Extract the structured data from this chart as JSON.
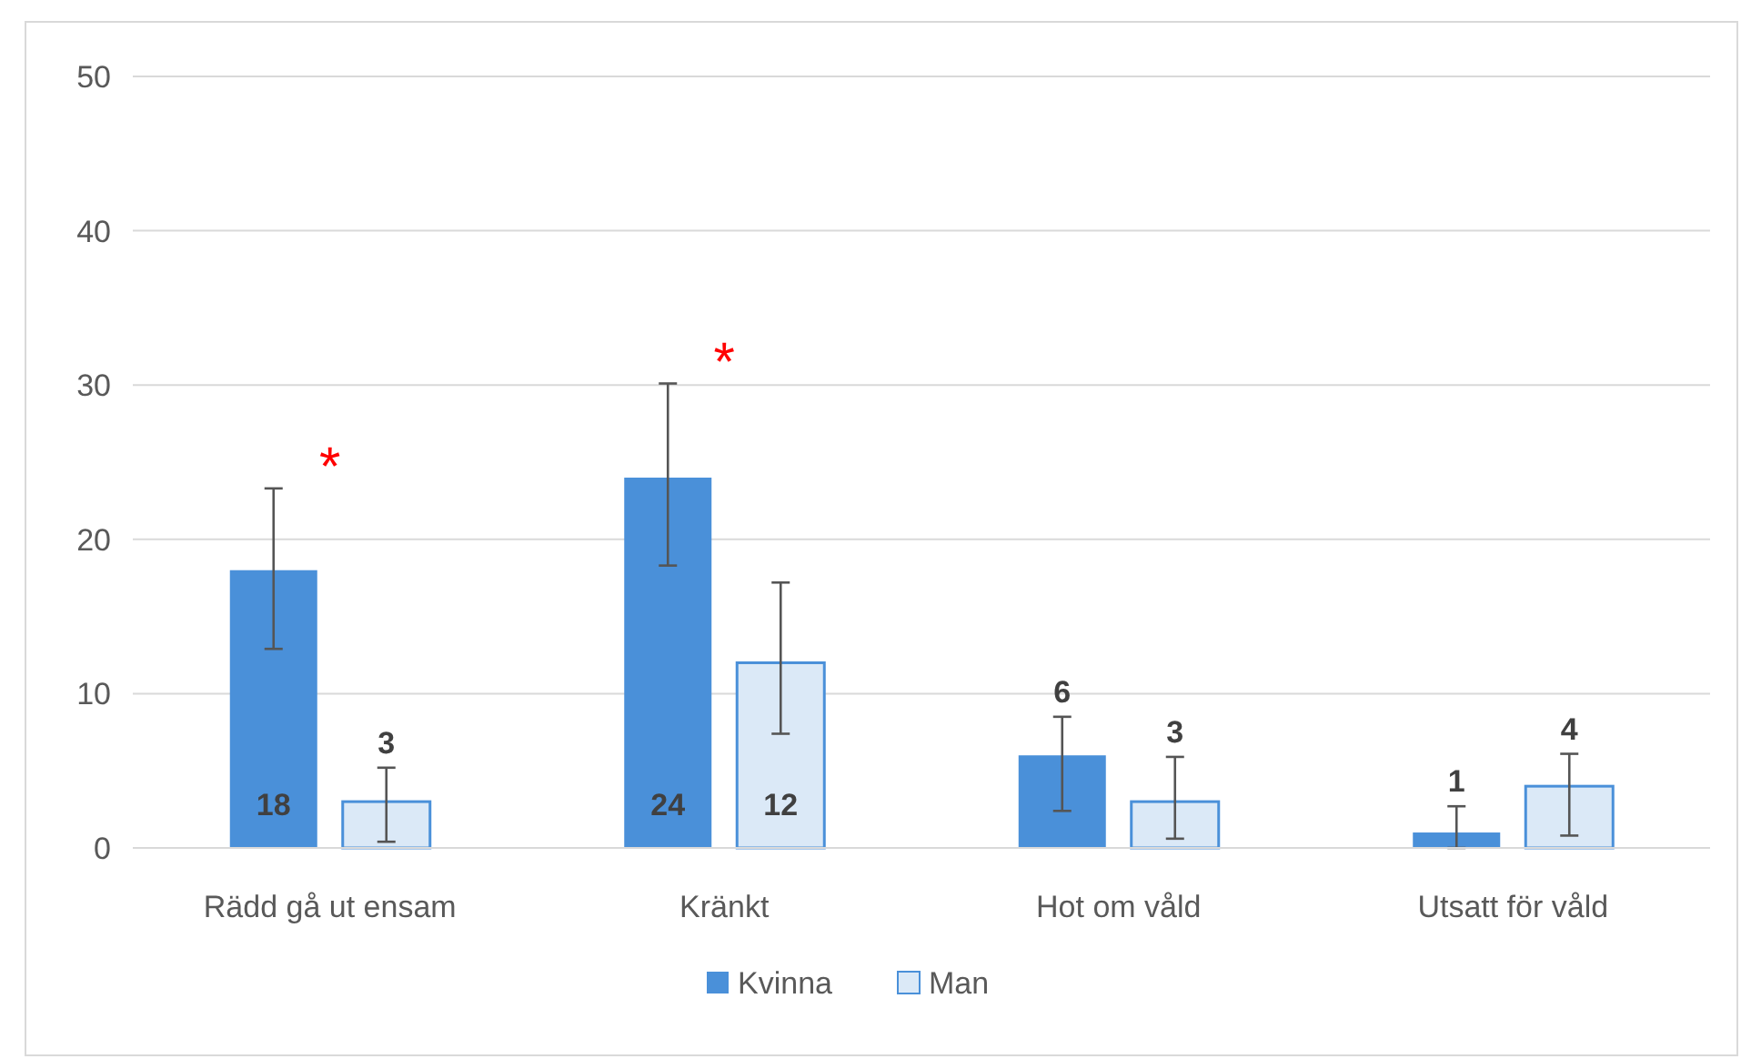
{
  "chart_data": {
    "type": "bar",
    "categories": [
      "Rädd gå ut ensam",
      "Kränkt",
      "Hot om våld",
      "Utsatt för våld"
    ],
    "series": [
      {
        "name": "Kvinna",
        "color": "#4a90d9",
        "values": [
          18,
          24,
          6,
          1
        ],
        "errors": [
          [
            12.9,
            23.3
          ],
          [
            18.3,
            30.1
          ],
          [
            2.4,
            8.5
          ],
          [
            0,
            2.7
          ]
        ]
      },
      {
        "name": "Man",
        "color": "#dbe9f7",
        "values": [
          3,
          12,
          3,
          4
        ],
        "errors": [
          [
            0.4,
            5.2
          ],
          [
            7.4,
            17.2
          ],
          [
            0.6,
            5.9
          ],
          [
            0.8,
            6.1
          ]
        ]
      }
    ],
    "ylim": [
      0,
      50
    ],
    "yticks": [
      0,
      10,
      20,
      30,
      40,
      50
    ],
    "grid": "y",
    "legend": "bottom",
    "data_labels": true,
    "annotations": [
      "*",
      "*"
    ]
  }
}
